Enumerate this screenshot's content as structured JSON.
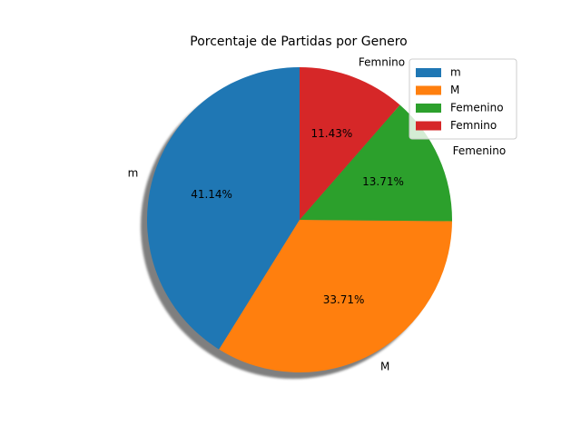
{
  "chart_data": {
    "type": "pie",
    "title": "Porcentaje de Partidas por Genero",
    "labels": [
      "m",
      "M",
      "Femenino",
      "Femnino"
    ],
    "values": [
      41.14,
      33.71,
      13.71,
      11.43
    ],
    "percent_labels": [
      "41.14%",
      "33.71%",
      "13.71%",
      "11.43%"
    ],
    "colors": [
      "#1f77b4",
      "#ff7f0e",
      "#2ca02c",
      "#d62728"
    ],
    "start_angle_deg": 90,
    "direction": "counterclockwise",
    "shadow": true,
    "legend": {
      "placement": "top-right",
      "entries": [
        "m",
        "M",
        "Femenino",
        "Femnino"
      ]
    }
  }
}
